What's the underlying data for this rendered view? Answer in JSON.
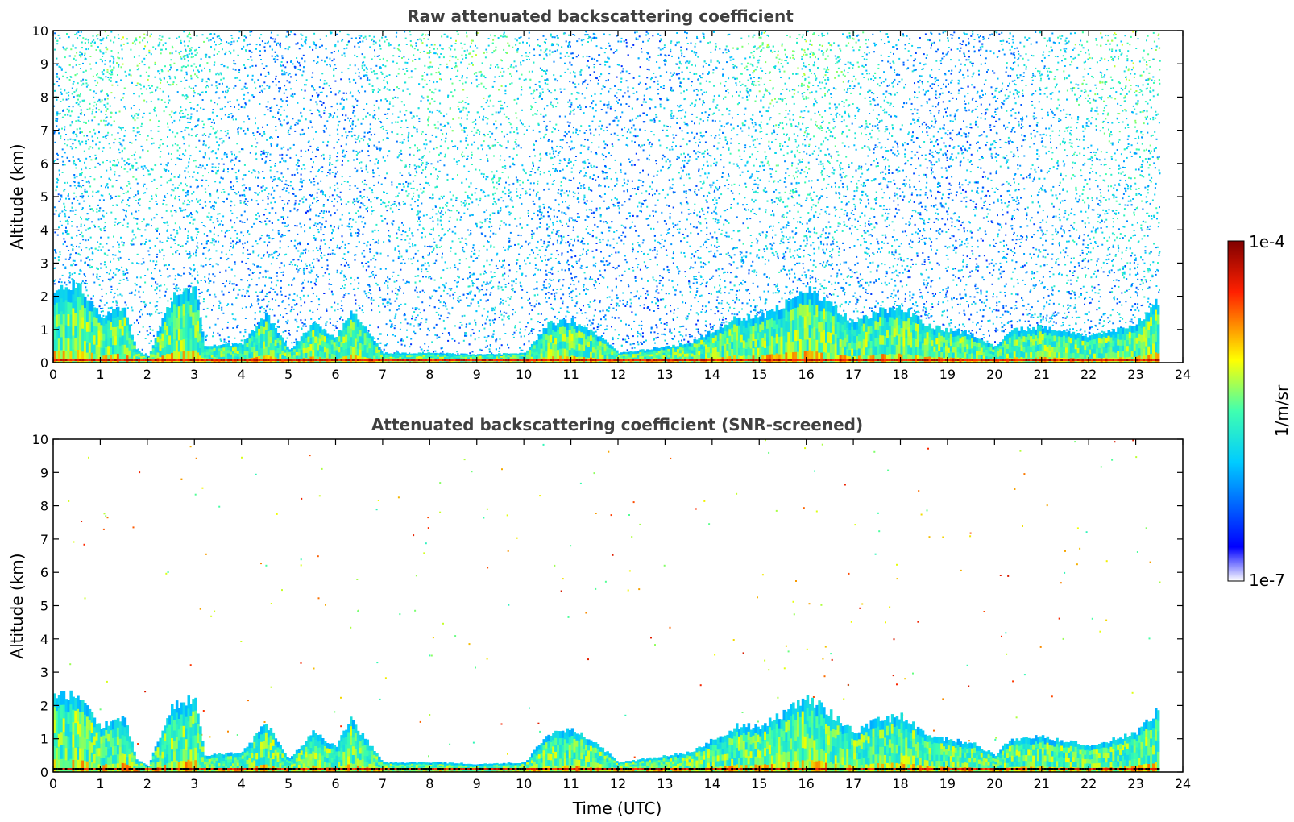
{
  "chart_data": [
    {
      "type": "heatmap",
      "title": "Raw attenuated backscattering coefficient",
      "xlabel": "",
      "ylabel": "Altitude (km)",
      "xlim": [
        0,
        24
      ],
      "ylim": [
        0,
        10
      ],
      "xticks": [
        "0",
        "1",
        "2",
        "3",
        "4",
        "5",
        "6",
        "7",
        "8",
        "9",
        "10",
        "11",
        "12",
        "13",
        "14",
        "15",
        "16",
        "17",
        "18",
        "19",
        "20",
        "21",
        "22",
        "23",
        "24"
      ],
      "yticks": [
        "0",
        "1",
        "2",
        "3",
        "4",
        "5",
        "6",
        "7",
        "8",
        "9",
        "10"
      ],
      "data_end_time": 23.5,
      "noise": "dense above boundary layer",
      "boundary_layer_top_km": [
        [
          0,
          2.3
        ],
        [
          0.5,
          2.4
        ],
        [
          1,
          1.4
        ],
        [
          1.5,
          1.7
        ],
        [
          1.75,
          0.4
        ],
        [
          2,
          0.2
        ],
        [
          2.5,
          2.0
        ],
        [
          3,
          2.3
        ],
        [
          3.2,
          0.5
        ],
        [
          4,
          0.6
        ],
        [
          4.5,
          1.5
        ],
        [
          5,
          0.4
        ],
        [
          5.5,
          1.2
        ],
        [
          6,
          0.8
        ],
        [
          6.3,
          1.6
        ],
        [
          7,
          0.3
        ],
        [
          8,
          0.3
        ],
        [
          9,
          0.25
        ],
        [
          10,
          0.3
        ],
        [
          10.5,
          1.2
        ],
        [
          11,
          1.3
        ],
        [
          11.5,
          0.9
        ],
        [
          12,
          0.3
        ],
        [
          13,
          0.5
        ],
        [
          13.5,
          0.6
        ],
        [
          14,
          1.0
        ],
        [
          14.5,
          1.4
        ],
        [
          15,
          1.4
        ],
        [
          15.5,
          1.8
        ],
        [
          16,
          2.3
        ],
        [
          16.5,
          1.8
        ],
        [
          17,
          1.2
        ],
        [
          17.5,
          1.6
        ],
        [
          18,
          1.7
        ],
        [
          18.5,
          1.2
        ],
        [
          19,
          1.0
        ],
        [
          19.5,
          0.9
        ],
        [
          20,
          0.5
        ],
        [
          20.3,
          1.0
        ],
        [
          21,
          1.1
        ],
        [
          22,
          0.8
        ],
        [
          23,
          1.2
        ],
        [
          23.5,
          2.0
        ]
      ]
    },
    {
      "type": "heatmap",
      "title": "Attenuated backscattering coefficient (SNR-screened)",
      "xlabel": "Time (UTC)",
      "ylabel": "Altitude (km)",
      "xlim": [
        0,
        24
      ],
      "ylim": [
        0,
        10
      ],
      "xticks": [
        "0",
        "1",
        "2",
        "3",
        "4",
        "5",
        "6",
        "7",
        "8",
        "9",
        "10",
        "11",
        "12",
        "13",
        "14",
        "15",
        "16",
        "17",
        "18",
        "19",
        "20",
        "21",
        "22",
        "23",
        "24"
      ],
      "yticks": [
        "0",
        "1",
        "2",
        "3",
        "4",
        "5",
        "6",
        "7",
        "8",
        "9",
        "10"
      ],
      "data_end_time": 23.5,
      "noise": "sparse",
      "boundary_layer_top_km": [
        [
          0,
          2.3
        ],
        [
          0.5,
          2.4
        ],
        [
          1,
          1.4
        ],
        [
          1.5,
          1.7
        ],
        [
          1.75,
          0.4
        ],
        [
          2,
          0.2
        ],
        [
          2.5,
          2.0
        ],
        [
          3,
          2.3
        ],
        [
          3.2,
          0.5
        ],
        [
          4,
          0.6
        ],
        [
          4.5,
          1.5
        ],
        [
          5,
          0.4
        ],
        [
          5.5,
          1.2
        ],
        [
          6,
          0.8
        ],
        [
          6.3,
          1.6
        ],
        [
          7,
          0.3
        ],
        [
          8,
          0.3
        ],
        [
          9,
          0.25
        ],
        [
          10,
          0.3
        ],
        [
          10.5,
          1.2
        ],
        [
          11,
          1.3
        ],
        [
          11.5,
          0.9
        ],
        [
          12,
          0.3
        ],
        [
          13,
          0.5
        ],
        [
          13.5,
          0.6
        ],
        [
          14,
          1.0
        ],
        [
          14.5,
          1.4
        ],
        [
          15,
          1.4
        ],
        [
          15.5,
          1.8
        ],
        [
          16,
          2.3
        ],
        [
          16.5,
          1.8
        ],
        [
          17,
          1.2
        ],
        [
          17.5,
          1.6
        ],
        [
          18,
          1.7
        ],
        [
          18.5,
          1.2
        ],
        [
          19,
          1.0
        ],
        [
          19.5,
          0.9
        ],
        [
          20,
          0.5
        ],
        [
          20.3,
          1.0
        ],
        [
          21,
          1.1
        ],
        [
          22,
          0.8
        ],
        [
          23,
          1.2
        ],
        [
          23.5,
          2.0
        ]
      ]
    }
  ],
  "colorbar": {
    "label": "1/m/sr",
    "max_label": "1e-4",
    "min_label": "1e-7",
    "scale": "log",
    "colormap": "jet",
    "colors": [
      "#ffffff",
      "#0000ff",
      "#00ffff",
      "#ffff00",
      "#ff0000",
      "#800000"
    ]
  }
}
